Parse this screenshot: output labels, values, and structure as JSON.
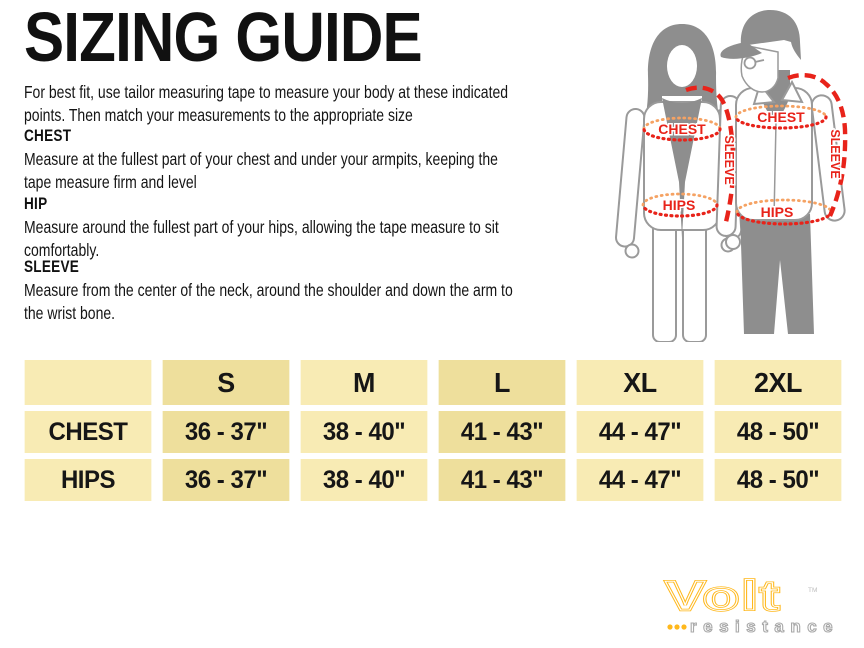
{
  "page": {
    "title": "SIZING GUIDE"
  },
  "intro": "For best fit, use tailor measuring tape to measure your body at these indicated points. Then match your measurements to the appropriate size",
  "sections": [
    {
      "heading": "CHEST",
      "body": "Measure at the fullest part of your chest and under your armpits, keeping the tape measure firm and level"
    },
    {
      "heading": "HIP",
      "body": "Measure around the fullest part of your hips, allowing the tape measure to sit comfortably."
    },
    {
      "heading": "SLEEVE",
      "body": "Measure from the center of the neck, around the shoulder and down the arm to the wrist bone."
    }
  ],
  "figure": {
    "labels": {
      "chest": "CHEST",
      "hips": "HIPS",
      "sleeve": "SLEEVE"
    },
    "annotation_red": "#e8231a",
    "annotation_orange": "#f5a263",
    "silhouette_gray": "#8e8e8e",
    "outline_gray": "#9a9a9a"
  },
  "size_table": {
    "columns": [
      "",
      "S",
      "M",
      "L",
      "XL",
      "2XL"
    ],
    "column_shades": [
      "light",
      "dark",
      "light",
      "dark",
      "light",
      "light"
    ],
    "rows": [
      {
        "label": "CHEST",
        "values": [
          "36 - 37\"",
          "38 - 40\"",
          "41 - 43\"",
          "44 - 47\"",
          "48 - 50\""
        ]
      },
      {
        "label": "HIPS",
        "values": [
          "36 - 37\"",
          "38 - 40\"",
          "41 - 43\"",
          "44 - 47\"",
          "48 - 50\""
        ]
      }
    ],
    "cell_light": "#f8ebb4",
    "cell_dark": "#eedf9c"
  },
  "brand": {
    "name": "Volt",
    "tm": "TM",
    "tagline": "resistance",
    "yellow": "#ffb81c",
    "gray": "#a9a9a9"
  }
}
